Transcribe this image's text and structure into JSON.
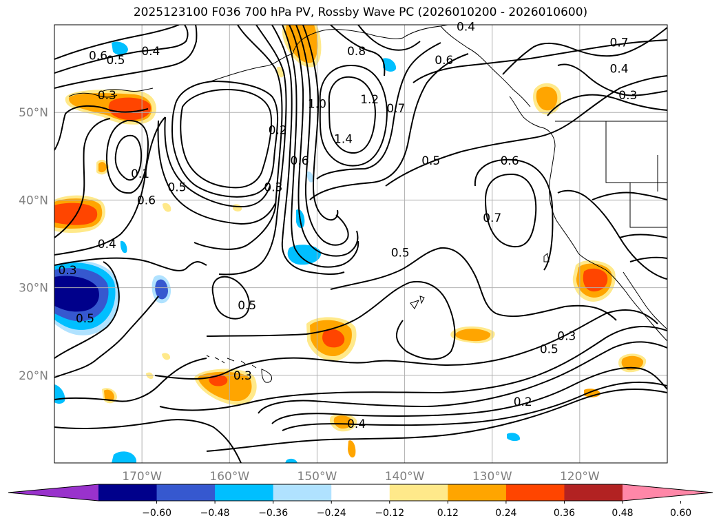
{
  "title": "2025123100 F036 700 hPa PV, Rossby Wave PC (2026010200 - 2026010600)",
  "map": {
    "lon_range": [
      -180,
      -110
    ],
    "lat_range": [
      10,
      60
    ],
    "lon_ticks": [
      {
        "lon": -170,
        "label": "170°W"
      },
      {
        "lon": -160,
        "label": "160°W"
      },
      {
        "lon": -150,
        "label": "150°W"
      },
      {
        "lon": -140,
        "label": "140°W"
      },
      {
        "lon": -130,
        "label": "130°W"
      },
      {
        "lon": -120,
        "label": "120°W"
      }
    ],
    "lat_ticks": [
      {
        "lat": 20,
        "label": "20°N"
      },
      {
        "lat": 30,
        "label": "30°N"
      },
      {
        "lat": 40,
        "label": "40°N"
      },
      {
        "lat": 50,
        "label": "50°N"
      }
    ],
    "gridlines": true,
    "contour_labels": [
      {
        "text": "0.6",
        "lon": -175,
        "lat": 56.5
      },
      {
        "text": "0.5",
        "lon": -173,
        "lat": 56
      },
      {
        "text": "0.4",
        "lon": -169,
        "lat": 57
      },
      {
        "text": "0.3",
        "lon": -174,
        "lat": 52
      },
      {
        "text": "0.1",
        "lon": -170.2,
        "lat": 43
      },
      {
        "text": "0.6",
        "lon": -169.5,
        "lat": 40
      },
      {
        "text": "0.5",
        "lon": -166,
        "lat": 41.5
      },
      {
        "text": "0.4",
        "lon": -174,
        "lat": 35
      },
      {
        "text": "0.3",
        "lon": -178.5,
        "lat": 32
      },
      {
        "text": "0.5",
        "lon": -176.5,
        "lat": 26.5
      },
      {
        "text": "0.5",
        "lon": -158,
        "lat": 28
      },
      {
        "text": "0.3",
        "lon": -158.5,
        "lat": 20
      },
      {
        "text": "0.2",
        "lon": -154.5,
        "lat": 48
      },
      {
        "text": "0.3",
        "lon": -155,
        "lat": 41.5
      },
      {
        "text": "0.6",
        "lon": -152,
        "lat": 44.5
      },
      {
        "text": "1.0",
        "lon": -150,
        "lat": 51
      },
      {
        "text": "1.4",
        "lon": -147,
        "lat": 47
      },
      {
        "text": "1.2",
        "lon": -144,
        "lat": 51.5
      },
      {
        "text": "0.8",
        "lon": -145.5,
        "lat": 57
      },
      {
        "text": "0.7",
        "lon": -141,
        "lat": 50.5
      },
      {
        "text": "0.6",
        "lon": -135.5,
        "lat": 56
      },
      {
        "text": "0.4",
        "lon": -133,
        "lat": 59.8
      },
      {
        "text": "0.5",
        "lon": -137,
        "lat": 44.5
      },
      {
        "text": "0.6",
        "lon": -128,
        "lat": 44.5
      },
      {
        "text": "0.7",
        "lon": -130,
        "lat": 38
      },
      {
        "text": "0.5",
        "lon": -140.5,
        "lat": 34
      },
      {
        "text": "0.4",
        "lon": -145.5,
        "lat": 14.5
      },
      {
        "text": "0.2",
        "lon": -126.5,
        "lat": 17
      },
      {
        "text": "0.5",
        "lon": -123.5,
        "lat": 23
      },
      {
        "text": "0.3",
        "lon": -121.5,
        "lat": 24.5
      },
      {
        "text": "0.7",
        "lon": -115.5,
        "lat": 58
      },
      {
        "text": "0.4",
        "lon": -115.5,
        "lat": 55
      },
      {
        "text": "0.3",
        "lon": -114.5,
        "lat": 52
      }
    ]
  },
  "colorbar": {
    "ticks": [
      "−0.60",
      "−0.48",
      "−0.36",
      "−0.24",
      "−0.12",
      "0.12",
      "0.24",
      "0.36",
      "0.48",
      "0.60"
    ],
    "colors": [
      "#9932cc",
      "#00008b",
      "#3658cf",
      "#00bfff",
      "#b0e2ff",
      "#ffffff",
      "#ffe98a",
      "#ffa500",
      "#ff4500",
      "#b22222",
      "#ff87a8"
    ]
  }
}
